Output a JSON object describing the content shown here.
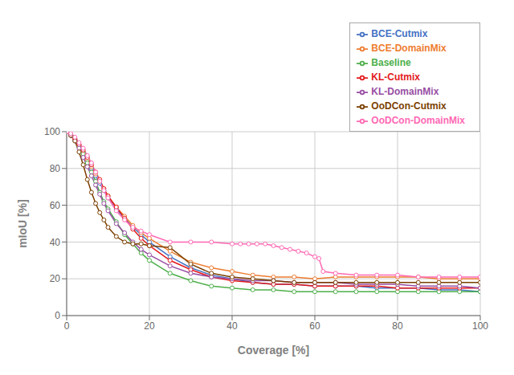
{
  "chart_data": {
    "type": "line",
    "xlabel": "Coverage [%]",
    "ylabel": "mIoU [%]",
    "xlim": [
      0,
      100
    ],
    "ylim": [
      0,
      100
    ],
    "xticks": [
      0,
      20,
      40,
      60,
      80,
      100
    ],
    "yticks": [
      0,
      20,
      40,
      60,
      80,
      100
    ],
    "grid": true,
    "legend": "upper right",
    "marker": "circle",
    "series": [
      {
        "name": "BCE-Cutmix",
        "color": "#4472C4",
        "x": [
          0,
          1,
          2,
          3,
          4,
          5,
          6,
          7,
          8,
          9,
          10,
          12,
          14,
          16,
          18,
          20,
          25,
          30,
          35,
          40,
          45,
          50,
          55,
          60,
          65,
          70,
          75,
          80,
          85,
          90,
          95,
          100
        ],
        "values": [
          100,
          98,
          96,
          93,
          89,
          85,
          80,
          76,
          72,
          68,
          64,
          58,
          53,
          48,
          44,
          40,
          32,
          26,
          22,
          20,
          18,
          17,
          17,
          16,
          16,
          16,
          15,
          15,
          15,
          14,
          14,
          13
        ]
      },
      {
        "name": "BCE-DomainMix",
        "color": "#ED7D31",
        "x": [
          0,
          1,
          2,
          3,
          4,
          5,
          6,
          7,
          8,
          9,
          10,
          12,
          14,
          16,
          18,
          20,
          25,
          30,
          35,
          40,
          45,
          50,
          55,
          60,
          65,
          70,
          75,
          80,
          85,
          90,
          95,
          100
        ],
        "values": [
          100,
          98,
          96,
          93,
          89,
          85,
          81,
          77,
          73,
          69,
          65,
          59,
          54,
          49,
          45,
          42,
          35,
          29,
          26,
          24,
          22,
          21,
          21,
          20,
          21,
          21,
          21,
          21,
          21,
          20,
          20,
          20
        ]
      },
      {
        "name": "Baseline",
        "color": "#4DAF4A",
        "x": [
          0,
          1,
          2,
          3,
          4,
          5,
          6,
          7,
          8,
          9,
          10,
          12,
          14,
          16,
          18,
          20,
          25,
          30,
          35,
          40,
          45,
          50,
          55,
          60,
          65,
          70,
          75,
          80,
          85,
          90,
          95,
          100
        ],
        "values": [
          100,
          98,
          95,
          92,
          88,
          83,
          78,
          73,
          67,
          62,
          58,
          51,
          44,
          39,
          34,
          30,
          23,
          19,
          16,
          15,
          14,
          14,
          13,
          13,
          13,
          13,
          13,
          13,
          13,
          13,
          13,
          13
        ]
      },
      {
        "name": "KL-Cutmix",
        "color": "#E41A1C",
        "x": [
          0,
          1,
          2,
          3,
          4,
          5,
          6,
          7,
          8,
          9,
          10,
          12,
          14,
          16,
          18,
          20,
          25,
          30,
          35,
          40,
          45,
          50,
          55,
          60,
          65,
          70,
          75,
          80,
          85,
          90,
          95,
          100
        ],
        "values": [
          100,
          98,
          96,
          93,
          90,
          86,
          82,
          78,
          74,
          69,
          65,
          59,
          53,
          47,
          42,
          38,
          30,
          25,
          21,
          19,
          18,
          17,
          17,
          16,
          16,
          16,
          16,
          15,
          15,
          15,
          15,
          15
        ]
      },
      {
        "name": "KL-DomainMix",
        "color": "#984EA3",
        "x": [
          0,
          1,
          2,
          3,
          4,
          5,
          6,
          7,
          8,
          9,
          10,
          12,
          14,
          16,
          18,
          20,
          25,
          30,
          35,
          40,
          45,
          50,
          55,
          60,
          65,
          70,
          75,
          80,
          85,
          90,
          95,
          100
        ],
        "values": [
          100,
          98,
          95,
          91,
          86,
          81,
          76,
          71,
          66,
          61,
          57,
          50,
          45,
          40,
          36,
          33,
          27,
          23,
          21,
          20,
          19,
          19,
          18,
          18,
          18,
          17,
          17,
          17,
          16,
          16,
          16,
          15
        ]
      },
      {
        "name": "OoDCon-Cutmix",
        "color": "#7B3F00",
        "x": [
          0,
          1,
          2,
          3,
          4,
          5,
          6,
          7,
          8,
          9,
          10,
          12,
          14,
          16,
          18,
          20,
          25,
          30,
          35,
          40,
          45,
          50,
          55,
          60,
          65,
          70,
          75,
          80,
          85,
          90,
          95,
          100
        ],
        "values": [
          100,
          98,
          95,
          89,
          82,
          74,
          67,
          61,
          56,
          52,
          48,
          43,
          40,
          39,
          39,
          38,
          37,
          28,
          23,
          21,
          20,
          19,
          18,
          18,
          18,
          18,
          18,
          18,
          18,
          18,
          18,
          18
        ]
      },
      {
        "name": "OoDCon-DomainMix",
        "color": "#FF69B4",
        "x": [
          0,
          1,
          2,
          3,
          4,
          5,
          6,
          7,
          8,
          9,
          10,
          12,
          14,
          16,
          18,
          20,
          25,
          30,
          35,
          40,
          42,
          44,
          46,
          48,
          50,
          52,
          54,
          56,
          58,
          60,
          61,
          62,
          65,
          70,
          75,
          80,
          85,
          90,
          95,
          100
        ],
        "values": [
          100,
          99,
          97,
          94,
          91,
          87,
          83,
          78,
          73,
          68,
          64,
          57,
          52,
          48,
          46,
          44,
          40,
          40,
          40,
          39,
          39,
          39,
          39,
          39,
          38,
          37,
          36,
          35,
          34,
          32,
          31,
          24,
          23,
          22,
          22,
          22,
          21,
          21,
          21,
          21
        ]
      }
    ]
  }
}
